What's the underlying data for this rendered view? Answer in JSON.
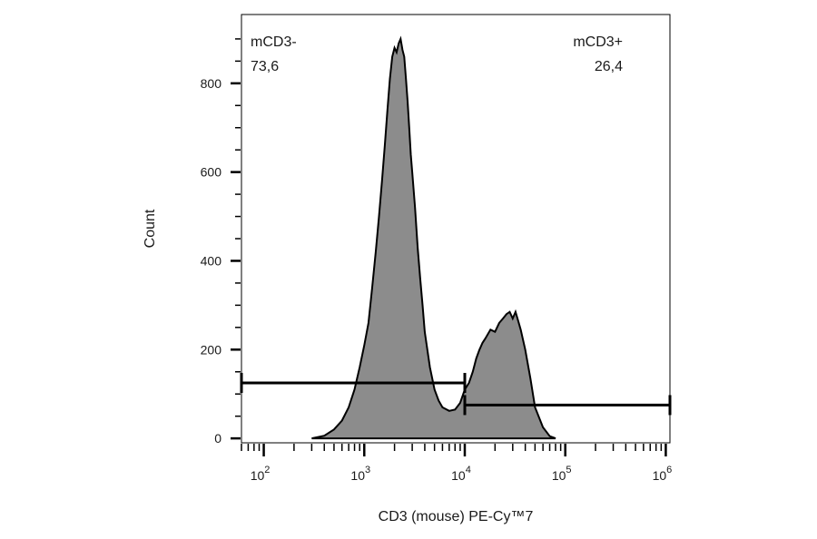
{
  "chart_data": {
    "type": "area",
    "title": "",
    "xlabel": "CD3 (mouse) PE-Cy™7",
    "ylabel": "Count",
    "x_scale": "log",
    "xlim": [
      60,
      1100000
    ],
    "ylim": [
      -10,
      955
    ],
    "x_ticks": [
      {
        "value": 100,
        "base": "10",
        "exp": "2"
      },
      {
        "value": 1000,
        "base": "10",
        "exp": "3"
      },
      {
        "value": 10000,
        "base": "10",
        "exp": "4"
      },
      {
        "value": 100000,
        "base": "10",
        "exp": "5"
      },
      {
        "value": 1000000,
        "base": "10",
        "exp": "6"
      }
    ],
    "y_ticks": [
      {
        "value": 0,
        "label": "0"
      },
      {
        "value": 200,
        "label": "200"
      },
      {
        "value": 400,
        "label": "400"
      },
      {
        "value": 600,
        "label": "600"
      },
      {
        "value": 800,
        "label": "800"
      }
    ],
    "fill_color": "#8c8c8c",
    "line_color": "#000000",
    "series": [
      {
        "x": [
          300,
          400,
          500,
          600,
          700,
          800,
          900,
          1000,
          1100,
          1200,
          1300,
          1400,
          1500,
          1600,
          1700,
          1800,
          1900,
          2000,
          2100,
          2200,
          2300,
          2400,
          2500,
          2600,
          2700,
          2800,
          2900,
          3000,
          3200,
          3400,
          3600,
          3800,
          4000,
          4500,
          5000,
          5500,
          6000,
          7000,
          8000,
          9000,
          10000,
          11000,
          12000,
          13000,
          14000,
          15000,
          16000,
          18000,
          20000,
          22000,
          24000,
          26000,
          28000,
          30000,
          32000,
          34000,
          36000,
          40000,
          45000,
          50000,
          60000,
          70000,
          80000
        ],
        "y": [
          0,
          6,
          20,
          40,
          70,
          110,
          160,
          210,
          260,
          340,
          420,
          500,
          580,
          660,
          740,
          810,
          860,
          880,
          870,
          890,
          900,
          875,
          860,
          810,
          760,
          700,
          640,
          600,
          520,
          430,
          360,
          300,
          240,
          160,
          110,
          85,
          70,
          62,
          65,
          80,
          110,
          125,
          150,
          180,
          200,
          215,
          225,
          245,
          240,
          260,
          270,
          280,
          285,
          270,
          285,
          265,
          245,
          200,
          135,
          70,
          25,
          5,
          0
        ]
      }
    ],
    "gates": [
      {
        "name": "mCD3-",
        "value": "73,6",
        "x_start": 60,
        "x_end": 10000,
        "y": 125
      },
      {
        "name": "mCD3+",
        "value": "26,4",
        "x_start": 10000,
        "x_end": 1100000,
        "y": 75
      }
    ]
  }
}
